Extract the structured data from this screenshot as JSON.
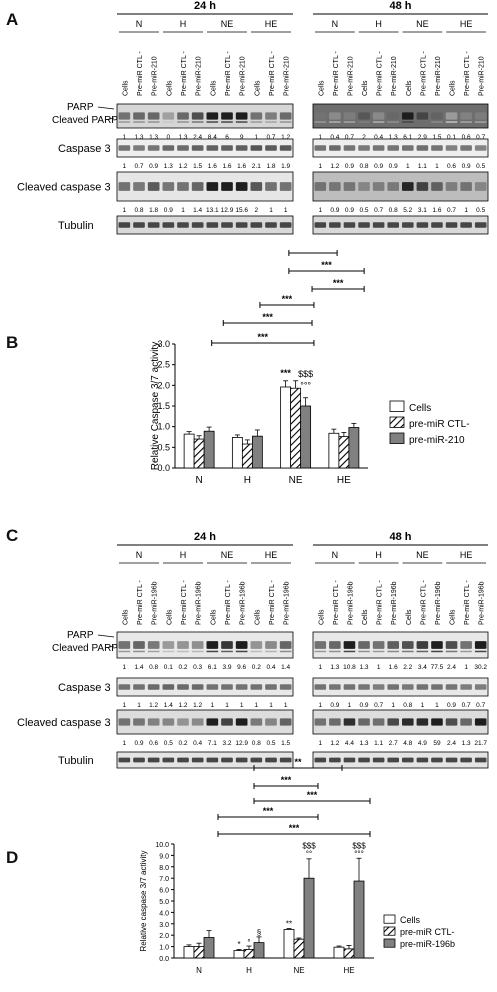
{
  "panels": {
    "A": "A",
    "B": "B",
    "C": "C",
    "D": "D"
  },
  "blot_A": {
    "time_24": "24 h",
    "time_48": "48 h",
    "conditions": [
      "N",
      "H",
      "NE",
      "HE"
    ],
    "lanes": [
      "Cells",
      "Pre-miR CTL -",
      "Pre-miR-210"
    ],
    "rows": {
      "parp": "PARP",
      "cleaved_parp": "Cleaved PARP",
      "caspase3": "Caspase 3",
      "cleaved_caspase3": "Cleaved caspase 3",
      "tubulin": "Tubulin"
    },
    "values_24": {
      "parp": [
        "1",
        "1.3",
        "1.3",
        "0",
        "1.3",
        "2.4",
        "8.4",
        "6",
        "9",
        "1",
        "0.7",
        "1.2"
      ],
      "caspase3": [
        "1",
        "0.7",
        "0.9",
        "1.3",
        "1.2",
        "1.5",
        "1.6",
        "1.6",
        "1.6",
        "2.1",
        "1.8",
        "1.9"
      ],
      "cleaved_caspase3": [
        "1",
        "0.8",
        "1.8",
        "0.9",
        "1",
        "1.4",
        "13.1",
        "12.9",
        "15.6",
        "2",
        "1",
        "1"
      ]
    },
    "values_48": {
      "parp": [
        "1",
        "0.4",
        "0.7",
        "2",
        "0.4",
        "1.3",
        "6.1",
        "2.9",
        "1.5",
        "0.1",
        "0.6",
        "0.7"
      ],
      "caspase3": [
        "1",
        "1.2",
        "0.9",
        "0.8",
        "0.9",
        "0.9",
        "1",
        "1.1",
        "1",
        "0.6",
        "0.9",
        "0.5"
      ],
      "cleaved_caspase3": [
        "1",
        "0.9",
        "0.9",
        "0.5",
        "0.7",
        "0.8",
        "5.2",
        "3.1",
        "1.6",
        "0.7",
        "1",
        "0.5"
      ]
    }
  },
  "chart_B": {
    "ylabel": "Relative Caspase 3/7 activity",
    "significance": [
      "***",
      "***",
      "***",
      "***",
      "***"
    ],
    "marks_NE": [
      "***",
      "$$$",
      "°°°"
    ]
  },
  "blot_C": {
    "time_24": "24 h",
    "time_48": "48 h",
    "conditions": [
      "N",
      "H",
      "NE",
      "HE"
    ],
    "lanes": [
      "Cells",
      "Pre-miR CTL -",
      "Pre-miR-196b"
    ],
    "rows": {
      "parp": "PARP",
      "cleaved_parp": "Cleaved PARP",
      "caspase3": "Caspase 3",
      "cleaved_caspase3": "Cleaved caspase 3",
      "tubulin": "Tubulin"
    },
    "values_24": {
      "parp": [
        "1",
        "1.4",
        "0.8",
        "0.1",
        "0.2",
        "0.3",
        "6.1",
        "3.9",
        "9.6",
        "0.2",
        "0.4",
        "1.4"
      ],
      "caspase3": [
        "1",
        "1",
        "1.2",
        "1.4",
        "1.2",
        "1.2",
        "1",
        "1",
        "1",
        "1",
        "1",
        "1"
      ],
      "cleaved_caspase3": [
        "1",
        "0.9",
        "0.6",
        "0.5",
        "0.2",
        "0.4",
        "7.1",
        "3.2",
        "12.9",
        "0.8",
        "0.5",
        "1.5"
      ]
    },
    "values_48": {
      "parp": [
        "1",
        "1.3",
        "10.8",
        "1.3",
        "1",
        "1.6",
        "2.2",
        "3.4",
        "77.5",
        "2.4",
        "1",
        "30.2"
      ],
      "caspase3": [
        "1",
        "0.9",
        "1",
        "0.9",
        "0.7",
        "1",
        "0.8",
        "1",
        "1",
        "0.9",
        "0.7",
        "0.7"
      ],
      "cleaved_caspase3": [
        "1",
        "1.2",
        "4.4",
        "1.3",
        "1.1",
        "2.7",
        "4.8",
        "4.9",
        "59",
        "2.4",
        "1.3",
        "21.7"
      ]
    }
  },
  "chart_D": {
    "ylabel": "Relative caspase 3/7 activity",
    "significance": [
      "**",
      "***",
      "***",
      "***",
      "***"
    ],
    "marks": {
      "H_cells": "*",
      "H_ctl": "°",
      "H_mir": "§",
      "NE_cells": "**",
      "NE_mir": [
        "$$$",
        "°°"
      ],
      "HE_mir": [
        "$$$",
        "°°°"
      ]
    }
  },
  "chart_data": [
    {
      "type": "bar",
      "categories": [
        "N",
        "H",
        "NE",
        "HE"
      ],
      "ylabel": "Relative Caspase 3/7 activity",
      "ylim": [
        0,
        3.0
      ],
      "yticks": [
        "0.0",
        "0.5",
        "1.0",
        "1.5",
        "2.0",
        "2.5",
        "3.0"
      ],
      "series": [
        {
          "name": "Cells",
          "values": [
            0.82,
            0.74,
            1.96,
            0.84
          ],
          "errors": [
            0.06,
            0.06,
            0.15,
            0.1
          ],
          "fill": "#ffffff"
        },
        {
          "name": "pre-miR CTL-",
          "values": [
            0.7,
            0.58,
            1.93,
            0.76
          ],
          "errors": [
            0.08,
            0.1,
            0.18,
            0.1
          ],
          "fill": "hatch"
        },
        {
          "name": "pre-miR-210",
          "values": [
            0.89,
            0.77,
            1.5,
            0.98
          ],
          "errors": [
            0.1,
            0.15,
            0.2,
            0.1
          ],
          "fill": "#808080"
        }
      ]
    },
    {
      "type": "bar",
      "categories": [
        "N",
        "H",
        "NE",
        "HE"
      ],
      "ylabel": "Relative caspase 3/7 activity",
      "ylim": [
        0,
        10.0
      ],
      "yticks": [
        "0.0",
        "1.0",
        "2.0",
        "3.0",
        "4.0",
        "5.0",
        "6.0",
        "7.0",
        "8.0",
        "9.0",
        "10.0"
      ],
      "series": [
        {
          "name": "Cells",
          "values": [
            1.0,
            0.65,
            2.5,
            0.95
          ],
          "errors": [
            0.15,
            0.1,
            0.08,
            0.1
          ],
          "fill": "#ffffff"
        },
        {
          "name": "pre-miR CTL-",
          "values": [
            1.0,
            0.75,
            1.65,
            0.8
          ],
          "errors": [
            0.3,
            0.3,
            0.1,
            0.3
          ],
          "fill": "hatch"
        },
        {
          "name": "pre-miR-196b",
          "values": [
            1.8,
            1.35,
            7.0,
            6.75
          ],
          "errors": [
            0.6,
            0.5,
            1.7,
            2.0
          ],
          "fill": "#808080"
        }
      ]
    }
  ]
}
